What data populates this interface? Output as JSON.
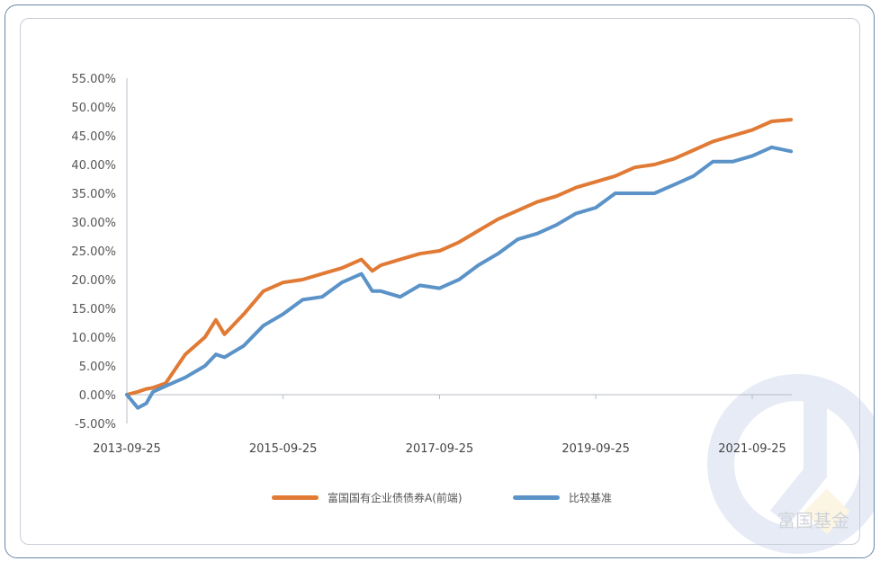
{
  "watermark": "富国基金",
  "chart_data": {
    "type": "line",
    "title": "",
    "xlabel": "",
    "ylabel": "",
    "ylim": [
      -5,
      55
    ],
    "yticks": [
      "55.00%",
      "50.00%",
      "45.00%",
      "40.00%",
      "35.00%",
      "30.00%",
      "25.00%",
      "20.00%",
      "15.00%",
      "10.00%",
      "5.00%",
      "0.00%",
      "-5.00%"
    ],
    "xticks": [
      "2013-09-25",
      "2015-09-25",
      "2017-09-25",
      "2019-09-25",
      "2021-09-25"
    ],
    "legend_position": "bottom",
    "grid": false,
    "x": [
      "2013-09-25",
      "2013-11-15",
      "2013-12-25",
      "2014-01-25",
      "2014-03-25",
      "2014-06-25",
      "2014-09-25",
      "2014-11-15",
      "2014-12-25",
      "2015-03-25",
      "2015-06-25",
      "2015-09-25",
      "2015-12-25",
      "2016-03-25",
      "2016-06-25",
      "2016-09-25",
      "2016-11-15",
      "2016-12-25",
      "2017-03-25",
      "2017-06-25",
      "2017-09-25",
      "2017-12-25",
      "2018-03-25",
      "2018-06-25",
      "2018-09-25",
      "2018-12-25",
      "2019-03-25",
      "2019-06-25",
      "2019-09-25",
      "2019-12-25",
      "2020-03-25",
      "2020-06-25",
      "2020-09-25",
      "2020-12-25",
      "2021-03-25",
      "2021-06-25",
      "2021-09-25",
      "2021-12-25",
      "2022-03-25"
    ],
    "series": [
      {
        "name": "富国国有企业债债券A(前端)",
        "color": "#e07a34",
        "values": [
          0,
          0.5,
          1,
          1.2,
          2,
          7,
          10,
          13,
          10.5,
          14,
          18,
          19.5,
          20,
          21,
          22,
          23.5,
          21.5,
          22.5,
          23.5,
          24.5,
          25,
          26.5,
          28.5,
          30.5,
          32,
          33.5,
          34.5,
          36,
          37,
          38,
          39.5,
          40,
          41,
          42.5,
          44,
          45,
          46,
          47.5,
          47.8
        ]
      },
      {
        "name": "比较基准",
        "color": "#5b93c8",
        "values": [
          0,
          -2.3,
          -1.5,
          0.5,
          1.5,
          3,
          5,
          7,
          6.5,
          8.5,
          12,
          14,
          16.5,
          17,
          19.5,
          21,
          18,
          18,
          17,
          19,
          18.5,
          20,
          22.5,
          24.5,
          27,
          28,
          29.5,
          31.5,
          32.5,
          35,
          35,
          35,
          36.5,
          38,
          40.5,
          40.5,
          41.5,
          43,
          42.3
        ]
      }
    ]
  }
}
